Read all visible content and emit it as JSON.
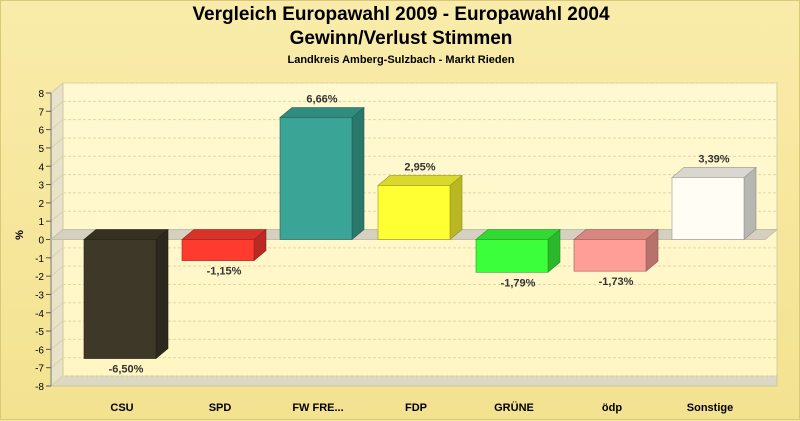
{
  "chart_data": {
    "type": "bar",
    "title": "Vergleich Europawahl 2009 - Europawahl 2004",
    "subtitle": "Gewinn/Verlust Stimmen",
    "subsubtitle": "Landkreis Amberg-Sulzbach - Markt Rieden",
    "ylabel": "%",
    "xlabel": "",
    "ylim": [
      -8,
      8
    ],
    "yticks": [
      "-8",
      "-7",
      "-6",
      "-5",
      "-4",
      "-3",
      "-2",
      "-1",
      "0",
      "1",
      "2",
      "3",
      "4",
      "5",
      "6",
      "7",
      "8"
    ],
    "grid": true,
    "categories": [
      "CSU",
      "SPD",
      "FW FRE...",
      "FDP",
      "GRÜNE",
      "ödp",
      "Sonstige"
    ],
    "values": [
      -6.5,
      -1.15,
      6.66,
      2.95,
      -1.79,
      -1.73,
      3.39
    ],
    "value_labels": [
      "-6,50%",
      "-1,15%",
      "6,66%",
      "2,95%",
      "-1,79%",
      "-1,73%",
      "3,39%"
    ],
    "colors": [
      "#3d3828",
      "#ff3b30",
      "#3aa596",
      "#ffff33",
      "#3cff3c",
      "#ff9e96",
      "#fffdf4"
    ]
  }
}
